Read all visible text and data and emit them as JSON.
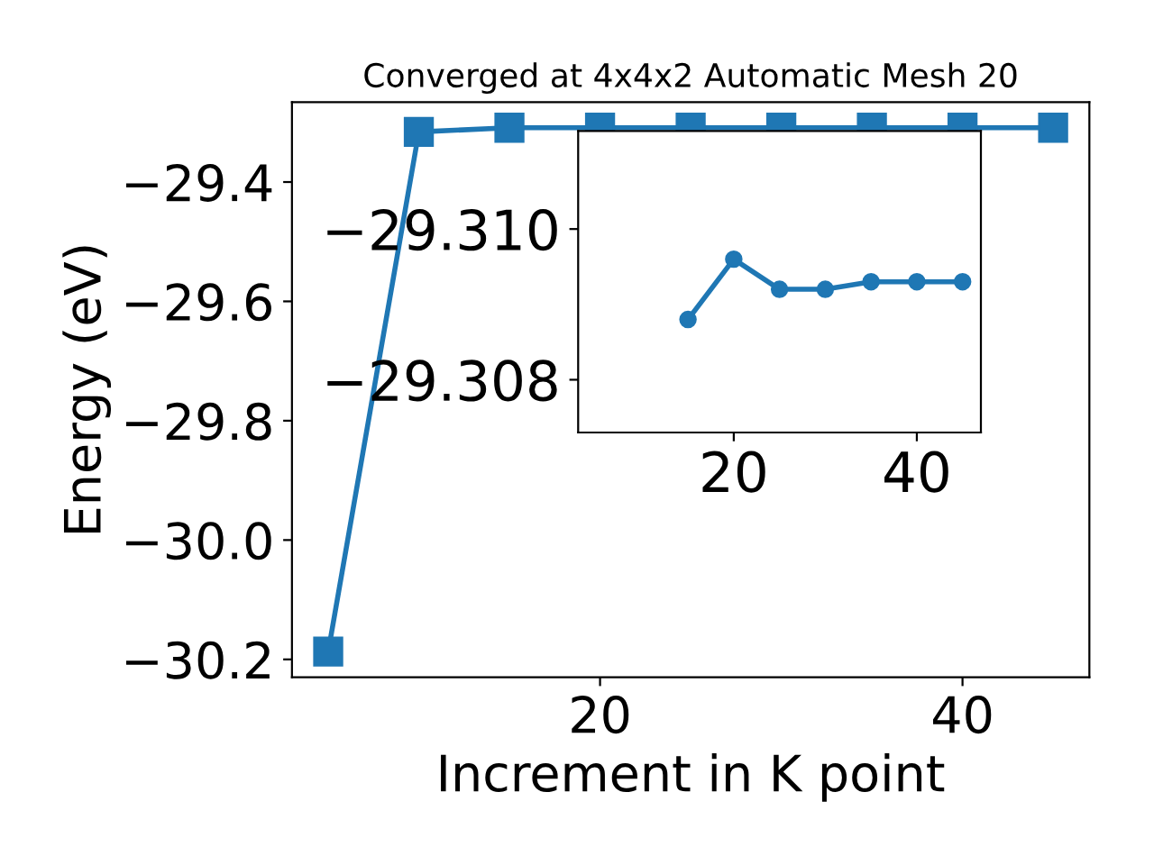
{
  "chart_data": [
    {
      "type": "line",
      "title": "Converged at 4x4x2 Automatic Mesh 20",
      "xlabel": "Increment in K point",
      "ylabel": "Energy (eV)",
      "x": [
        5,
        10,
        15,
        20,
        25,
        30,
        35,
        40,
        45
      ],
      "series": [
        {
          "color": "#1f77b4",
          "values": [
            -30.187,
            -29.316,
            -29.309,
            -29.309,
            -29.309,
            -29.309,
            -29.309,
            -29.309,
            -29.309
          ]
        }
      ],
      "marker": "square",
      "line_style": "solid",
      "grid": false,
      "xlim": [
        3,
        47
      ],
      "ylim": [
        -30.23,
        -29.266
      ],
      "xticks": [
        20,
        40
      ],
      "yticks": [
        {
          "value": -30.2,
          "label": "−30.2"
        },
        {
          "value": -30.0,
          "label": "−30.0"
        },
        {
          "value": -29.8,
          "label": "−29.8"
        },
        {
          "value": -29.6,
          "label": "−29.6"
        },
        {
          "value": -29.4,
          "label": "−29.4"
        }
      ]
    },
    {
      "type": "line",
      "x": [
        15,
        20,
        25,
        30,
        35,
        40,
        45
      ],
      "series": [
        {
          "color": "#1f77b4",
          "values": [
            -29.3088,
            -29.3096,
            -29.3092,
            -29.3092,
            -29.3093,
            -29.3093,
            -29.3093
          ]
        }
      ],
      "marker": "circle",
      "line_style": "solid",
      "grid": false,
      "xlim": [
        3,
        47
      ],
      "ylim": [
        -29.3073,
        -29.3113
      ],
      "xticks": [
        20,
        40
      ],
      "yticks": [
        {
          "value": -29.31,
          "label": "−29.310"
        },
        {
          "value": -29.308,
          "label": "−29.308"
        }
      ]
    }
  ]
}
